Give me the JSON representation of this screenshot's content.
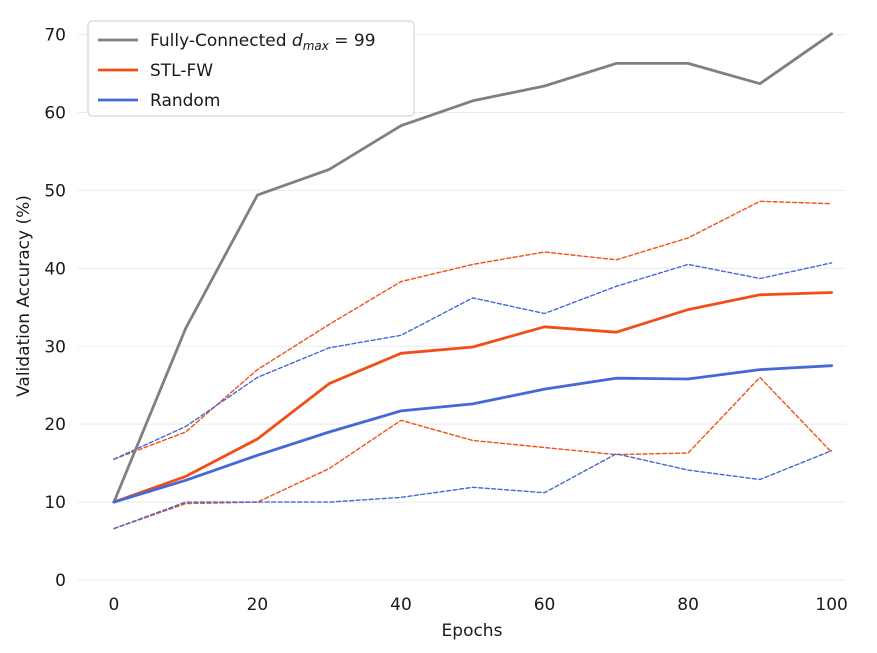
{
  "chart_data": {
    "type": "line",
    "xlabel": "Epochs",
    "ylabel": "Validation Accuracy (%)",
    "xlim": [
      -5,
      102
    ],
    "ylim": [
      0,
      72
    ],
    "xticks": [
      0,
      20,
      40,
      60,
      80,
      100
    ],
    "yticks": [
      0,
      10,
      20,
      30,
      40,
      50,
      60,
      70
    ],
    "grid": "horizontal",
    "legend_position": "top-left",
    "x": [
      0,
      10,
      20,
      30,
      40,
      50,
      60,
      70,
      80,
      90,
      100
    ],
    "series": [
      {
        "name": "Fully-Connected d_max = 99",
        "legend_prefix": "Fully-Connected ",
        "legend_math_var": "d",
        "legend_math_sub": "max",
        "legend_math_rest": " = 99",
        "color": "#808080",
        "style": "solid",
        "values": [
          10.0,
          32.3,
          49.4,
          52.7,
          58.3,
          61.5,
          63.4,
          66.3,
          66.3,
          63.7,
          70.1
        ]
      },
      {
        "name": "STL-FW",
        "color": "#f05018",
        "style": "solid",
        "values": [
          10.0,
          13.3,
          18.1,
          25.2,
          29.1,
          29.9,
          32.5,
          31.8,
          34.7,
          36.6,
          36.9
        ]
      },
      {
        "name": "Random",
        "color": "#4468d8",
        "style": "solid",
        "values": [
          10.0,
          12.8,
          16.0,
          19.0,
          21.7,
          22.6,
          24.5,
          25.9,
          25.8,
          27.0,
          27.5
        ]
      },
      {
        "name": "",
        "color": "#f05018",
        "style": "dashed",
        "values": [
          15.5,
          19.0,
          27.0,
          32.8,
          38.3,
          40.5,
          42.1,
          41.1,
          43.9,
          48.6,
          48.3
        ]
      },
      {
        "name": "",
        "color": "#f05018",
        "style": "dashed",
        "values": [
          6.6,
          9.8,
          10.0,
          14.3,
          20.5,
          17.9,
          17.0,
          16.1,
          16.3,
          26.0,
          16.4
        ]
      },
      {
        "name": "",
        "color": "#4468d8",
        "style": "dashed",
        "values": [
          15.5,
          19.7,
          26.0,
          29.8,
          31.4,
          36.2,
          34.2,
          37.7,
          40.5,
          38.7,
          40.7
        ]
      },
      {
        "name": "",
        "color": "#4468d8",
        "style": "dashed",
        "values": [
          6.6,
          10.0,
          10.0,
          10.0,
          10.6,
          11.9,
          11.2,
          16.2,
          14.1,
          12.9,
          16.6
        ]
      }
    ]
  }
}
